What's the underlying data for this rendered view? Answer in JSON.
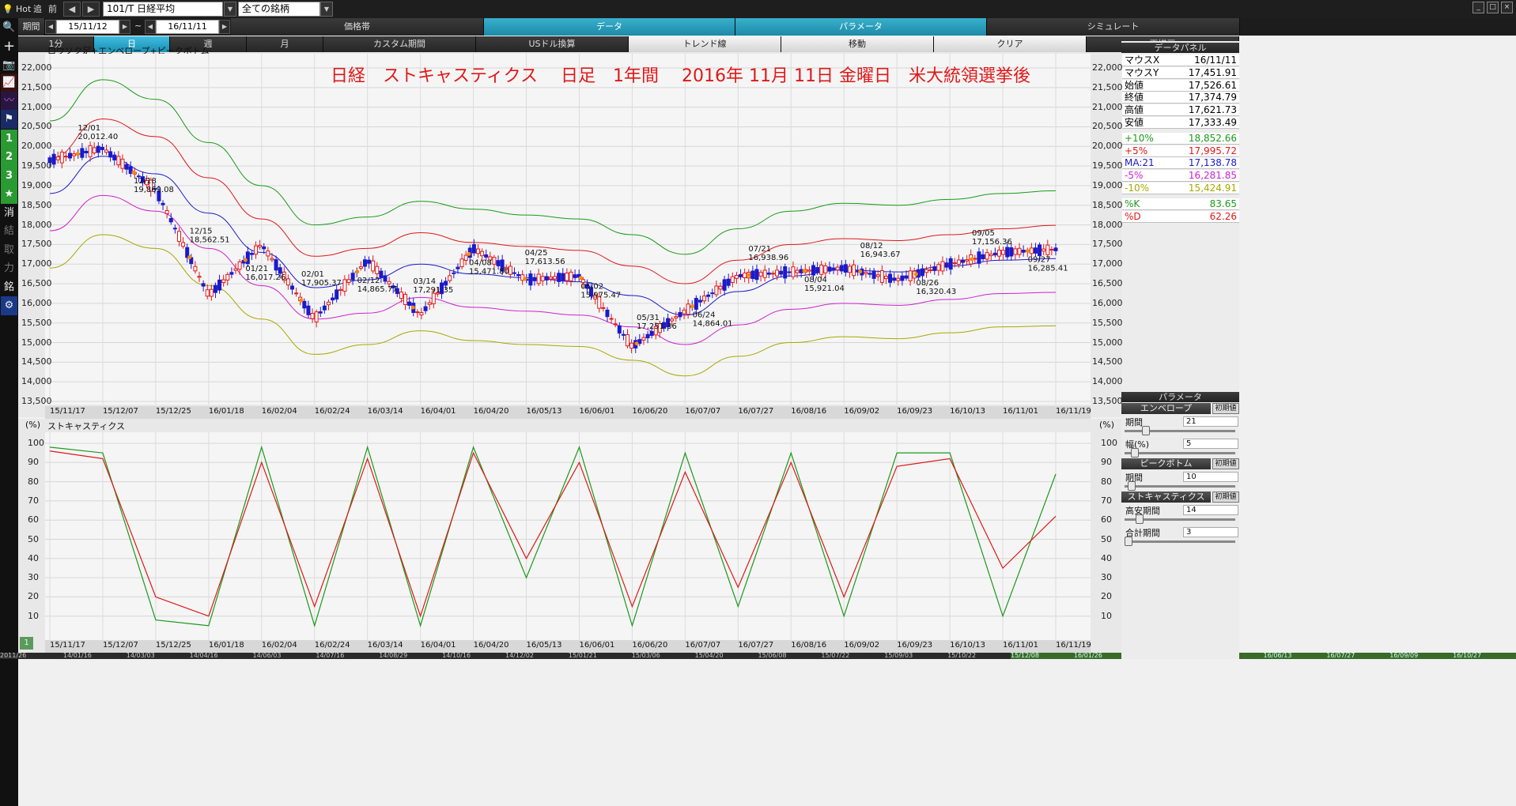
{
  "topbar": {
    "hot": "Hot",
    "prev": "追",
    "del": "前",
    "code_combo": "101/T 日経平均",
    "filter_combo": "全ての銘柄"
  },
  "row2": {
    "period_label": "期間",
    "date_from": "15/11/12",
    "tilde": "~",
    "date_to": "16/11/11",
    "menus": [
      "価格帯",
      "データ",
      "パラメータ",
      "シミュレート"
    ]
  },
  "row3": {
    "tabs": [
      "1分",
      "日",
      "週",
      "月",
      "カスタム期間",
      "USドル換算",
      "トレンド線",
      "移動",
      "クリア",
      "再描画"
    ]
  },
  "chart_top": {
    "label": "ロウソク足+エンベロープ+ピークボトム",
    "title": "日経　ストキャスティクス　 日足　1年間　 2016年 11月 11日 金曜日　米大統領選挙後",
    "yticks": [
      "22,000",
      "21,500",
      "21,000",
      "20,500",
      "20,000",
      "19,500",
      "19,000",
      "18,500",
      "18,000",
      "17,500",
      "17,000",
      "16,500",
      "16,000",
      "15,500",
      "15,000",
      "14,500",
      "14,000",
      "13,500"
    ],
    "xticks": [
      "15/11/17",
      "15/12/07",
      "15/12/25",
      "16/01/18",
      "16/02/04",
      "16/02/24",
      "16/03/14",
      "16/04/01",
      "16/04/20",
      "16/05/13",
      "16/06/01",
      "16/06/20",
      "16/07/07",
      "16/07/27",
      "16/08/16",
      "16/09/02",
      "16/09/23",
      "16/10/13",
      "16/11/01",
      "16/11/19"
    ],
    "annotations": [
      {
        "date": "12/01",
        "value": "20,012.40"
      },
      {
        "date": "12/18",
        "value": "19,869.08"
      },
      {
        "date": "12/15",
        "value": "18,562.51"
      },
      {
        "date": "01/21",
        "value": "16,017.26"
      },
      {
        "date": "02/01",
        "value": "17,905.37"
      },
      {
        "date": "02/12",
        "value": "14,865.77"
      },
      {
        "date": "03/14",
        "value": "17,291.35"
      },
      {
        "date": "04/08",
        "value": "15,471.80"
      },
      {
        "date": "04/25",
        "value": "17,613.56"
      },
      {
        "date": "05/02",
        "value": "15,975.47"
      },
      {
        "date": "05/31",
        "value": "17,251.36"
      },
      {
        "date": "06/24",
        "value": "14,864.01"
      },
      {
        "date": "07/21",
        "value": "16,938.96"
      },
      {
        "date": "08/04",
        "value": "15,921.04"
      },
      {
        "date": "08/12",
        "value": "16,943.67"
      },
      {
        "date": "08/26",
        "value": "16,320.43"
      },
      {
        "date": "09/05",
        "value": "17,156.36"
      },
      {
        "date": "09/27",
        "value": "16,285.41"
      }
    ]
  },
  "chart_bottom": {
    "label": "ストキャスティクス",
    "unit": "(%)",
    "yticks": [
      "100",
      "90",
      "80",
      "70",
      "60",
      "50",
      "40",
      "30",
      "20",
      "10"
    ]
  },
  "bottom_dates": [
    "2011/26",
    "14/01/16",
    "14/03/03",
    "14/04/16",
    "14/06/03",
    "14/07/16",
    "14/08/29",
    "14/10/16",
    "14/12/02",
    "15/01/21",
    "15/03/06",
    "15/04/20",
    "15/06/08",
    "15/07/22",
    "15/09/03",
    "15/10/22",
    "15/12/08",
    "16/01/26",
    "16/03/10",
    "16/04/25",
    "16/06/13",
    "16/07/27",
    "16/09/09",
    "16/10/27"
  ],
  "data_panel": {
    "header": "データパネル",
    "rows": [
      {
        "k": "マウスX",
        "v": "16/11/11",
        "color": "#000000"
      },
      {
        "k": "マウスY",
        "v": "17,451.91",
        "color": "#000000"
      },
      {
        "k": "始値",
        "v": "17,526.61",
        "color": "#000000"
      },
      {
        "k": "終値",
        "v": "17,374.79",
        "color": "#000000"
      },
      {
        "k": "高値",
        "v": "17,621.73",
        "color": "#000000"
      },
      {
        "k": "安値",
        "v": "17,333.49",
        "color": "#000000"
      },
      {
        "k": "+10%",
        "v": "18,852.66",
        "color": "#1a9a1a"
      },
      {
        "k": "+5%",
        "v": "17,995.72",
        "color": "#e01818"
      },
      {
        "k": "MA:21",
        "v": "17,138.78",
        "color": "#1a1acc"
      },
      {
        "k": "-5%",
        "v": "16,281.85",
        "color": "#cc22cc"
      },
      {
        "k": "-10%",
        "v": "15,424.91",
        "color": "#a8a800"
      },
      {
        "k": "%K",
        "v": "83.65",
        "color": "#1a9a1a"
      },
      {
        "k": "%D",
        "v": "62.26",
        "color": "#e01818"
      }
    ]
  },
  "param_panel": {
    "header": "パラメータ",
    "init": "初期値",
    "envelope": {
      "title": "エンベロープ",
      "period_label": "期間",
      "period": "21",
      "width_label": "幅(%)",
      "width": "5"
    },
    "peakbottom": {
      "title": "ピークボトム",
      "period_label": "期間",
      "period": "10"
    },
    "stoch": {
      "title": "ストキャスティクス",
      "hl_label": "高安期間",
      "hl": "14",
      "sum_label": "合計期間",
      "sum": "3"
    }
  },
  "page_indicator": "1",
  "chart_data": [
    {
      "type": "line",
      "title": "日経　ストキャスティクス　 日足　1年間　 2016年 11月 11日 金曜日　米大統領選挙後",
      "xlabel": "",
      "ylabel": "",
      "ylim": [
        13500,
        22000
      ],
      "x": [
        "15/11/17",
        "15/12/07",
        "15/12/25",
        "16/01/18",
        "16/02/04",
        "16/02/24",
        "16/03/14",
        "16/04/01",
        "16/04/20",
        "16/05/13",
        "16/06/01",
        "16/06/20",
        "16/07/07",
        "16/07/27",
        "16/08/16",
        "16/09/02",
        "16/09/23",
        "16/10/13",
        "16/11/01",
        "16/11/11"
      ],
      "series": [
        {
          "name": "+10%",
          "color": "#1a9a1a",
          "values": [
            20650,
            21700,
            21200,
            20100,
            19000,
            18000,
            18200,
            18600,
            18400,
            18250,
            18150,
            17750,
            17250,
            17900,
            18350,
            18550,
            18500,
            18650,
            18800,
            18870
          ]
        },
        {
          "name": "+5%",
          "color": "#e01818",
          "values": [
            19700,
            20700,
            20250,
            19200,
            18150,
            17200,
            17400,
            17800,
            17550,
            17450,
            17350,
            16950,
            16500,
            17100,
            17500,
            17650,
            17600,
            17750,
            17900,
            17990
          ]
        },
        {
          "name": "MA:21",
          "color": "#1a1acc",
          "values": [
            18800,
            19750,
            19300,
            18300,
            17300,
            16400,
            16600,
            17000,
            16750,
            16650,
            16550,
            16200,
            15700,
            16300,
            16700,
            16850,
            16800,
            16950,
            17100,
            17140
          ]
        },
        {
          "name": "-5%",
          "color": "#cc22cc",
          "values": [
            17850,
            18750,
            18350,
            17400,
            16450,
            15600,
            15750,
            16150,
            15900,
            15800,
            15700,
            15400,
            14950,
            15450,
            15850,
            16000,
            15950,
            16100,
            16250,
            16280
          ]
        },
        {
          "name": "-10%",
          "color": "#a8a800",
          "values": [
            16900,
            17750,
            17400,
            16450,
            15600,
            14700,
            14950,
            15300,
            15050,
            14950,
            14900,
            14550,
            14150,
            14650,
            15000,
            15150,
            15100,
            15250,
            15400,
            15425
          ]
        },
        {
          "values": [
            19650,
            19950,
            18900,
            16200,
            17500,
            15600,
            17100,
            15700,
            17400,
            16600,
            16700,
            14900,
            15800,
            16700,
            16800,
            16900,
            16600,
            17000,
            17300,
            17375
          ]
        }
      ]
    },
    {
      "type": "line",
      "title": "ストキャスティクス",
      "ylabel": "(%)",
      "ylim": [
        0,
        100
      ],
      "x": [
        "15/11/17",
        "15/12/07",
        "15/12/25",
        "16/01/18",
        "16/02/04",
        "16/02/24",
        "16/03/14",
        "16/04/01",
        "16/04/20",
        "16/05/13",
        "16/06/01",
        "16/06/20",
        "16/07/07",
        "16/07/27",
        "16/08/16",
        "16/09/02",
        "16/09/23",
        "16/10/13",
        "16/11/01",
        "16/11/11"
      ],
      "series": [
        {
          "name": "%K",
          "color": "#1a9a1a",
          "values": [
            98,
            95,
            8,
            5,
            98,
            5,
            98,
            5,
            98,
            30,
            98,
            5,
            95,
            15,
            95,
            10,
            95,
            95,
            10,
            84
          ]
        },
        {
          "name": "%D",
          "color": "#e01818",
          "values": [
            96,
            92,
            20,
            10,
            90,
            15,
            92,
            10,
            95,
            40,
            90,
            15,
            85,
            25,
            90,
            20,
            88,
            92,
            35,
            62
          ]
        }
      ]
    }
  ]
}
